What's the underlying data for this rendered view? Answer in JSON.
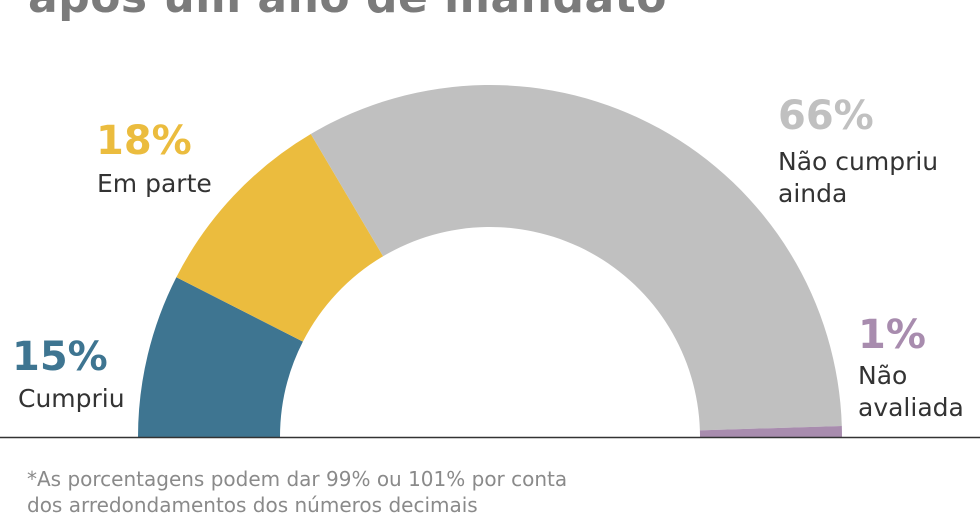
{
  "title": "após um ano de mandato",
  "chart_data": {
    "type": "pie",
    "variant": "semi-donut",
    "title": "após um ano de mandato",
    "slices": [
      {
        "label": "Cumpriu",
        "pct_label": "15%",
        "value": 15,
        "color": "#3e7591"
      },
      {
        "label": "Em parte",
        "pct_label": "18%",
        "value": 18,
        "color": "#ebbc3e"
      },
      {
        "label": "Não cumpriu\nainda",
        "pct_label": "66%",
        "value": 66,
        "color": "#c0c0c0"
      },
      {
        "label": "Não\navaliada",
        "pct_label": "1%",
        "value": 1,
        "color": "#a88cae"
      }
    ]
  },
  "footnote": {
    "line1": "*As porcentagens podem dar 99% ou 101% por conta",
    "line2": "dos arredondamentos dos números decimais"
  }
}
